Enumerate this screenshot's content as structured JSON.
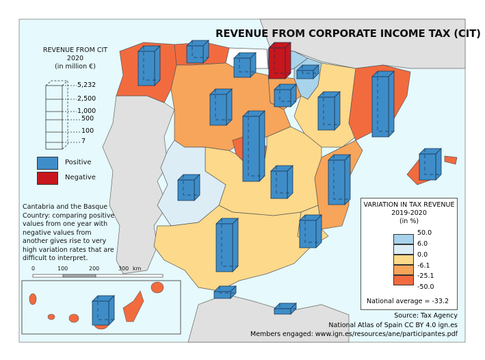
{
  "title": "REVENUE FROM CORPORATE INCOME TAX (CIT)",
  "revenue_legend": {
    "title_line1": "REVENUE FROM CIT",
    "title_line2": "2020",
    "title_line3": "(in million €)",
    "ticks": [
      "5,232",
      "2,500",
      "1,000",
      "500",
      "100",
      "7"
    ],
    "positive_label": "Positive",
    "negative_label": "Negative",
    "positive_color": "#3f8dc8",
    "negative_color": "#c8161d"
  },
  "note": "Cantabria and the Basque Country: comparing positive values from one year with negative values from another gives rise to very high variation rates that are difficult to interpret.",
  "scale_bar": {
    "labels": [
      "0",
      "100",
      "200",
      "300"
    ],
    "unit": "km"
  },
  "variation_legend": {
    "title_line1": "VARIATION IN TAX REVENUE",
    "title_line2": "2019-2020",
    "title_line3": "(in %)",
    "breaks": [
      "50.0",
      "6.0",
      "0.0",
      "-6.1",
      "-25.1",
      "-50.0"
    ],
    "class_colors": [
      "#a8d3ea",
      "#dcedf6",
      "#fdd98b",
      "#f7a55a",
      "#f26b3f"
    ],
    "national_average": "National average = -33.2"
  },
  "source": "Source: Tax Agency",
  "credit": "National Atlas of Spain CC BY 4.0 ign.es",
  "members": "Members engaged: www.ign.es/resources/ane/participantes.pdf"
}
